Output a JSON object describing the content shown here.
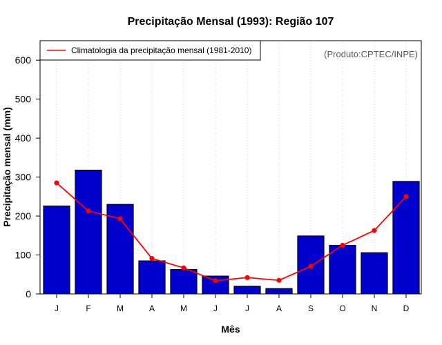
{
  "chart_data": {
    "type": "bar",
    "title": "Precipitação Mensal (1993): Região 107",
    "xlabel": "Mês",
    "ylabel": "Precipitação mensal (mm)",
    "ylim": [
      0,
      650
    ],
    "yticks": [
      0,
      100,
      200,
      300,
      400,
      500,
      600
    ],
    "grid": true,
    "categories": [
      "J",
      "F",
      "M",
      "A",
      "M",
      "J",
      "J",
      "A",
      "S",
      "O",
      "N",
      "D"
    ],
    "series": [
      {
        "name": "Precipitação mensal (1993)",
        "type": "bar",
        "color": "#0000CD",
        "values": [
          226,
          318,
          230,
          85,
          63,
          46,
          20,
          14,
          149,
          125,
          106,
          289
        ]
      },
      {
        "name": "Climatologia da precipitação mensal (1981-2010)",
        "type": "line",
        "color": "#FF0000",
        "values": [
          285,
          213,
          193,
          91,
          67,
          34,
          42,
          35,
          71,
          125,
          163,
          250
        ]
      }
    ],
    "legend": {
      "position": "top-left",
      "entries": [
        "Climatologia da precipitação mensal (1981-2010)"
      ]
    },
    "annotation": "(Produto:CPTEC/INPE)"
  }
}
